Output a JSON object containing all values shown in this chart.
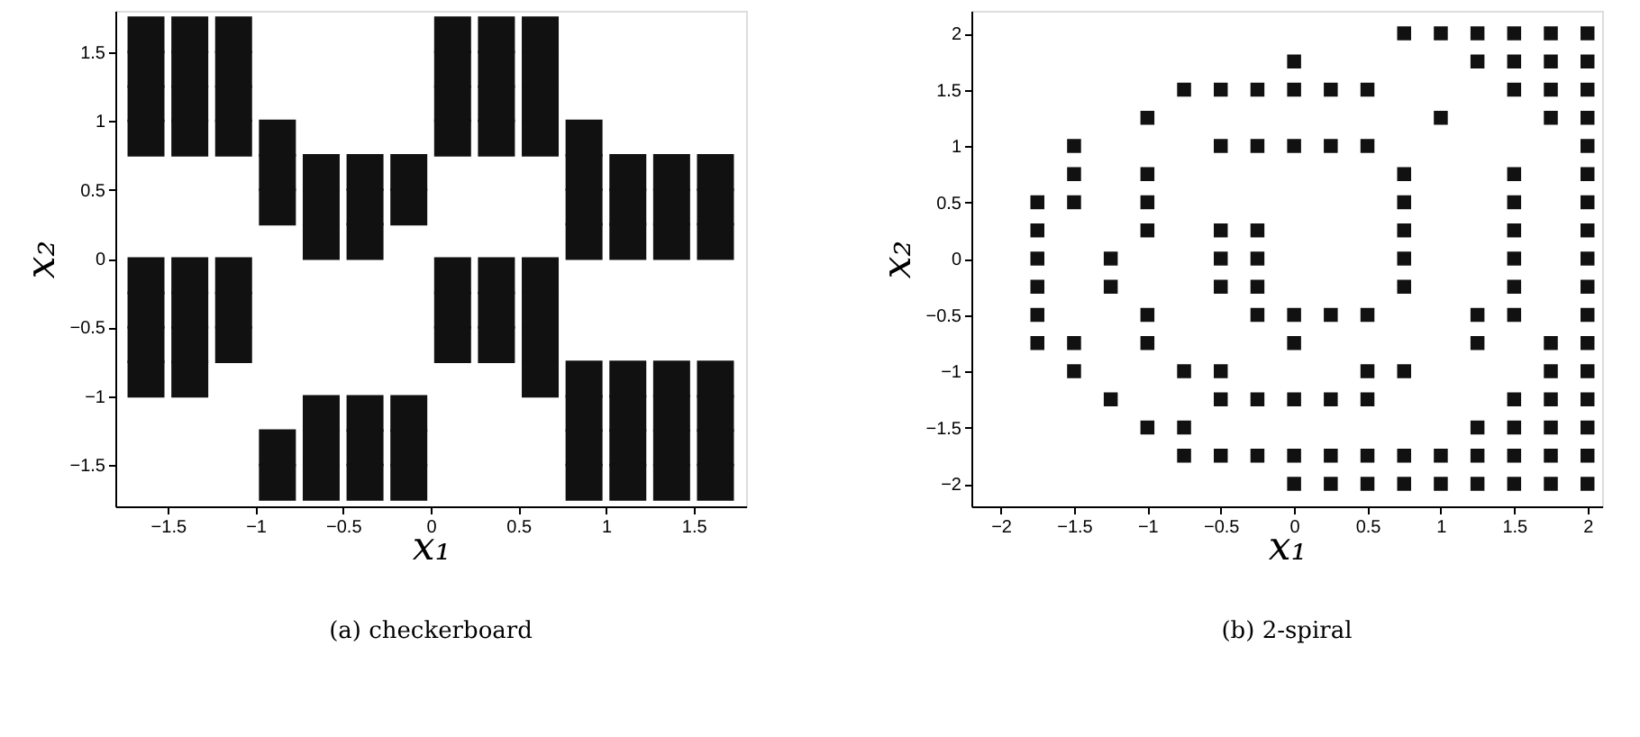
{
  "chart_data": [
    {
      "type": "scatter",
      "xlabel": "x₁",
      "ylabel": "x₂",
      "annotations": [
        "(a) checkerboard"
      ],
      "marker": "square",
      "grid": false,
      "xlim": [
        -1.8,
        1.8
      ],
      "ylim": [
        -1.8,
        1.8
      ],
      "xticks": [
        -1.5,
        -1,
        -0.5,
        0,
        0.5,
        1,
        1.5
      ],
      "yticks": [
        -1.5,
        -1,
        -0.5,
        0,
        0.5,
        1,
        1.5
      ],
      "series": [
        {
          "color": "#111111",
          "x": [
            -1.625,
            -1.375,
            -1.125,
            0.125,
            0.375,
            0.625,
            -1.625,
            -1.375,
            -1.125,
            0.125,
            0.375,
            0.625,
            -1.625,
            -1.375,
            -1.125,
            0.125,
            0.375,
            0.625,
            -1.625,
            -1.375,
            -1.125,
            -0.875,
            0.125,
            0.375,
            0.625,
            0.875,
            -0.875,
            -0.625,
            -0.375,
            -0.125,
            0.875,
            1.125,
            1.375,
            1.625,
            -0.875,
            -0.625,
            -0.375,
            -0.125,
            0.875,
            1.125,
            1.375,
            1.625,
            -0.625,
            -0.375,
            0.875,
            1.125,
            1.375,
            1.625,
            -1.625,
            -1.375,
            -1.125,
            0.125,
            0.375,
            0.625,
            -1.625,
            -1.375,
            -1.125,
            0.125,
            0.375,
            0.625,
            -1.625,
            -1.375,
            -1.125,
            0.125,
            0.375,
            0.625,
            -1.625,
            -1.375,
            0.625,
            0.875,
            1.125,
            1.375,
            1.625,
            -0.625,
            -0.375,
            -0.125,
            0.875,
            1.125,
            1.375,
            1.625,
            -0.875,
            -0.625,
            -0.375,
            -0.125,
            0.875,
            1.125,
            1.375,
            1.625,
            -0.875,
            -0.625,
            -0.375,
            -0.125,
            0.875,
            1.125,
            1.375,
            1.625
          ],
          "values": [
            1.625,
            1.625,
            1.625,
            1.625,
            1.625,
            1.625,
            1.375,
            1.375,
            1.375,
            1.375,
            1.375,
            1.375,
            1.125,
            1.125,
            1.125,
            1.125,
            1.125,
            1.125,
            0.875,
            0.875,
            0.875,
            0.875,
            0.875,
            0.875,
            0.875,
            0.875,
            0.625,
            0.625,
            0.625,
            0.625,
            0.625,
            0.625,
            0.625,
            0.625,
            0.375,
            0.375,
            0.375,
            0.375,
            0.375,
            0.375,
            0.375,
            0.375,
            0.125,
            0.125,
            0.125,
            0.125,
            0.125,
            0.125,
            -0.125,
            -0.125,
            -0.125,
            -0.125,
            -0.125,
            -0.125,
            -0.375,
            -0.375,
            -0.375,
            -0.375,
            -0.375,
            -0.375,
            -0.625,
            -0.625,
            -0.625,
            -0.625,
            -0.625,
            -0.625,
            -0.875,
            -0.875,
            -0.875,
            -0.875,
            -0.875,
            -0.875,
            -0.875,
            -1.125,
            -1.125,
            -1.125,
            -1.125,
            -1.125,
            -1.125,
            -1.125,
            -1.375,
            -1.375,
            -1.375,
            -1.375,
            -1.375,
            -1.375,
            -1.375,
            -1.375,
            -1.625,
            -1.625,
            -1.625,
            -1.625,
            -1.625,
            -1.625,
            -1.625,
            -1.625
          ]
        }
      ]
    },
    {
      "type": "scatter",
      "xlabel": "x₁",
      "ylabel": "x₂",
      "annotations": [
        "(b) 2-spiral"
      ],
      "marker": "square",
      "grid": false,
      "xlim": [
        -2.2,
        2.1
      ],
      "ylim": [
        -2.2,
        2.2
      ],
      "xticks": [
        -2,
        -1.5,
        -1,
        -0.5,
        0,
        0.5,
        1,
        1.5,
        2
      ],
      "yticks": [
        -2,
        -1.5,
        -1,
        -0.5,
        0,
        0.5,
        1,
        1.5,
        2
      ],
      "series": [
        {
          "color": "#111111",
          "x": [
            0.75,
            1,
            1.25,
            1.5,
            1.75,
            2,
            0,
            1.25,
            1.5,
            1.75,
            2,
            -0.75,
            -0.5,
            -0.25,
            0,
            0.25,
            0.5,
            1.5,
            1.75,
            2,
            -1,
            1,
            1.75,
            2,
            -1.5,
            -0.5,
            -0.25,
            0,
            0.25,
            0.5,
            2,
            -1.5,
            -1,
            0.75,
            1.5,
            2,
            -1.75,
            -1.5,
            -1,
            0.75,
            1.5,
            2,
            -1.75,
            -1,
            -0.5,
            -0.25,
            0.75,
            1.5,
            2,
            -1.75,
            -1.25,
            -0.5,
            -0.25,
            0.75,
            1.5,
            2,
            -1.75,
            -1.25,
            -0.5,
            -0.25,
            0.75,
            1.5,
            2,
            -1.75,
            -1,
            -0.25,
            0,
            0.25,
            0.5,
            1.25,
            1.5,
            2,
            -1.75,
            -1.5,
            -1,
            0,
            1.25,
            1.75,
            2,
            -1.5,
            -0.75,
            -0.5,
            0.5,
            0.75,
            1.75,
            2,
            -1.25,
            -0.5,
            -0.25,
            0,
            0.25,
            0.5,
            1.5,
            1.75,
            2,
            -1,
            -0.75,
            1.25,
            1.5,
            1.75,
            2,
            -0.75,
            -0.5,
            -0.25,
            0,
            0.25,
            0.5,
            0.75,
            1,
            1.25,
            1.5,
            1.75,
            2,
            0,
            0.25,
            0.5,
            0.75,
            1,
            1.25,
            1.5,
            1.75,
            2
          ],
          "values": [
            2,
            2,
            2,
            2,
            2,
            2,
            1.75,
            1.75,
            1.75,
            1.75,
            1.75,
            1.5,
            1.5,
            1.5,
            1.5,
            1.5,
            1.5,
            1.5,
            1.5,
            1.5,
            1.25,
            1.25,
            1.25,
            1.25,
            1,
            1,
            1,
            1,
            1,
            1,
            1,
            0.75,
            0.75,
            0.75,
            0.75,
            0.75,
            0.5,
            0.5,
            0.5,
            0.5,
            0.5,
            0.5,
            0.25,
            0.25,
            0.25,
            0.25,
            0.25,
            0.25,
            0.25,
            0,
            0,
            0,
            0,
            0,
            0,
            0,
            -0.25,
            -0.25,
            -0.25,
            -0.25,
            -0.25,
            -0.25,
            -0.25,
            -0.5,
            -0.5,
            -0.5,
            -0.5,
            -0.5,
            -0.5,
            -0.5,
            -0.5,
            -0.5,
            -0.75,
            -0.75,
            -0.75,
            -0.75,
            -0.75,
            -0.75,
            -0.75,
            -1,
            -1,
            -1,
            -1,
            -1,
            -1,
            -1,
            -1.25,
            -1.25,
            -1.25,
            -1.25,
            -1.25,
            -1.25,
            -1.25,
            -1.25,
            -1.25,
            -1.5,
            -1.5,
            -1.5,
            -1.5,
            -1.5,
            -1.5,
            -1.75,
            -1.75,
            -1.75,
            -1.75,
            -1.75,
            -1.75,
            -1.75,
            -1.75,
            -1.75,
            -1.75,
            -1.75,
            -1.75,
            -2,
            -2,
            -2,
            -2,
            -2,
            -2,
            -2,
            -2,
            -2
          ]
        }
      ]
    }
  ]
}
